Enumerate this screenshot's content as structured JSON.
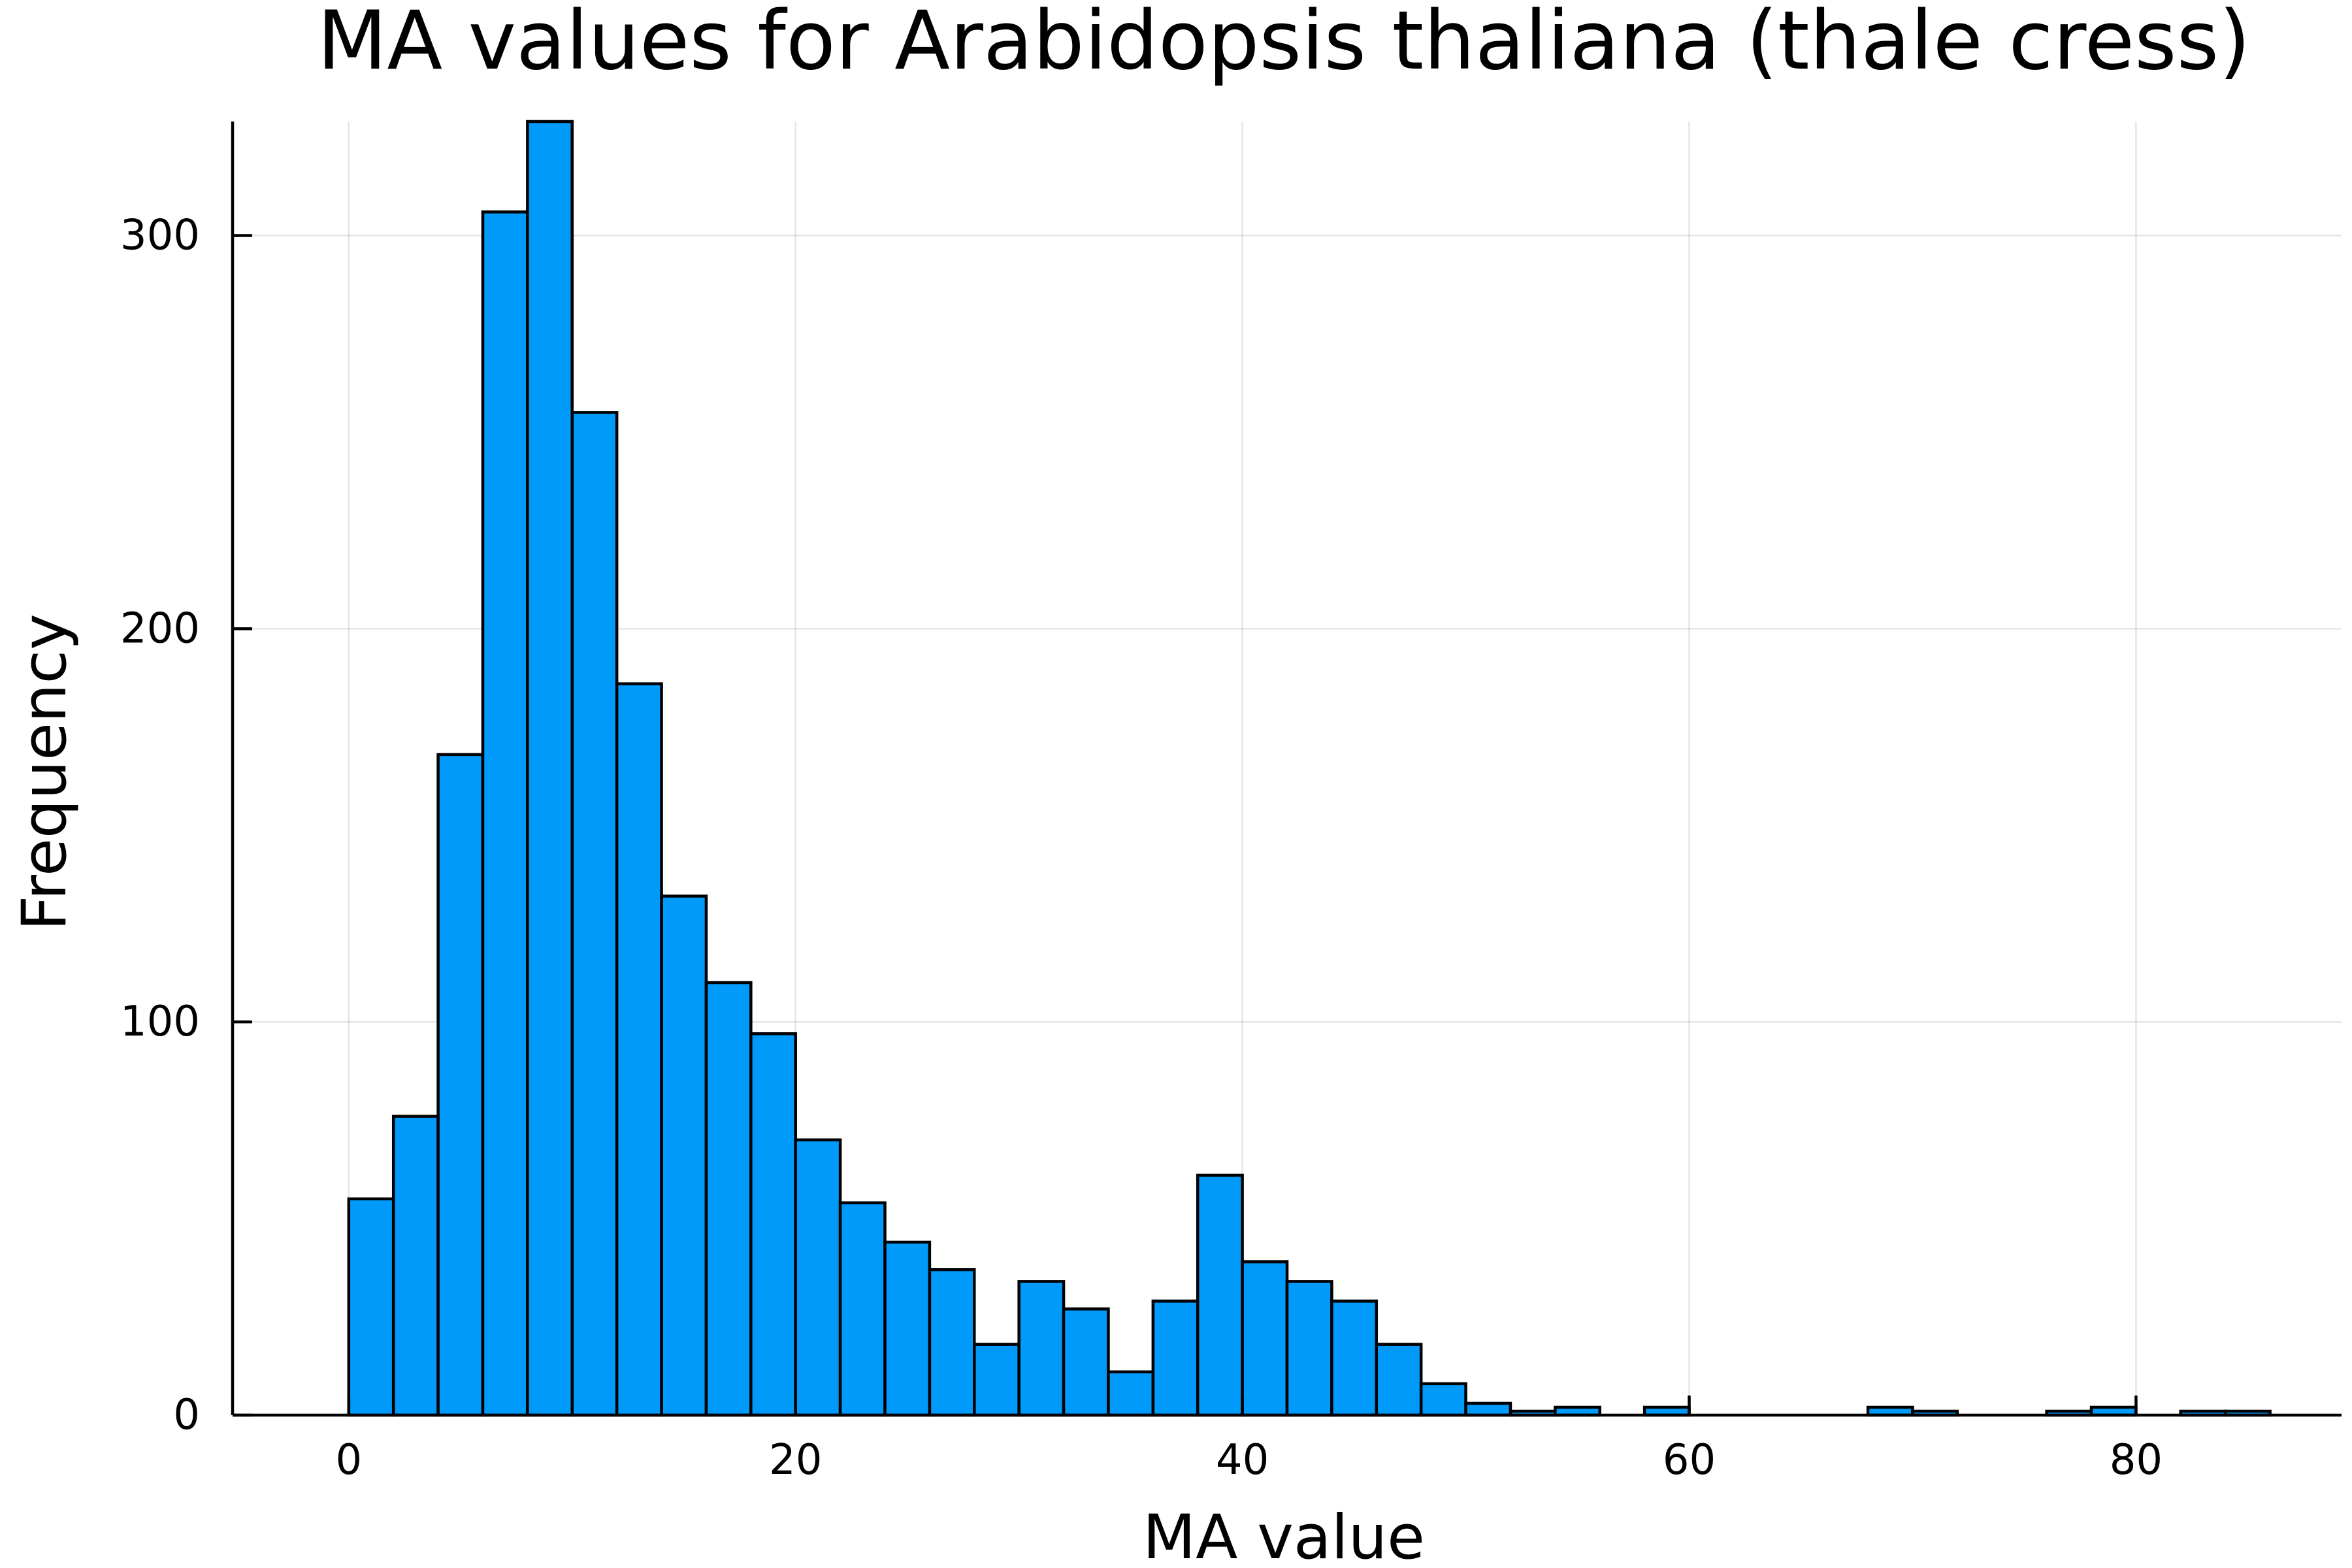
{
  "chart_data": {
    "type": "bar",
    "title": "MA values for Arabidopsis thaliana (thale cress)",
    "xlabel": "MA value",
    "ylabel": "Frequency",
    "bin_width": 2,
    "bin_start": 0,
    "values": [
      55,
      76,
      168,
      306,
      329,
      255,
      186,
      132,
      110,
      97,
      70,
      54,
      44,
      37,
      18,
      34,
      27,
      11,
      29,
      61,
      39,
      34,
      29,
      18,
      8,
      3,
      1,
      2,
      0,
      2,
      0,
      0,
      0,
      0,
      2,
      1,
      0,
      0,
      1,
      2,
      0,
      1,
      1
    ],
    "xlim": [
      -5.2,
      89.2
    ],
    "ylim": [
      0,
      329
    ],
    "x_ticks": [
      0,
      20,
      40,
      60,
      80
    ],
    "y_ticks": [
      0,
      100,
      200,
      300
    ],
    "x_tick_labels": [
      "0",
      "20",
      "40",
      "60",
      "80"
    ],
    "y_tick_labels": [
      "0",
      "100",
      "200",
      "300"
    ],
    "grid": true,
    "legend": false,
    "bar_color": "#009AFA",
    "edge_color": "#000000"
  }
}
